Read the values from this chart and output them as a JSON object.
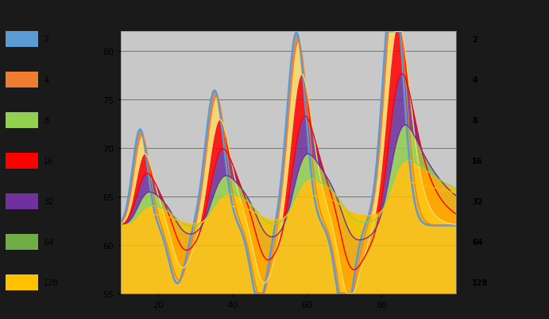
{
  "title": "",
  "ylim": [
    55,
    82
  ],
  "xlim": [
    10,
    100
  ],
  "yticks": [
    55,
    60,
    65,
    70,
    75,
    80
  ],
  "xticks": [
    20,
    40,
    60,
    80
  ],
  "plot_bg_color": "#c8c8c8",
  "left_panel_color": "#1a1a1a",
  "series_colors": [
    "#5b9bd5",
    "#ed7d31",
    "#ffd966",
    "#ff0000",
    "#7030a0",
    "#92d050",
    "#ffc000"
  ],
  "legend_labels": [
    "2",
    "4",
    "8",
    "16",
    "32",
    "64",
    "128"
  ],
  "legend_colors": [
    "#5b9bd5",
    "#ed7d31",
    "#92d050",
    "#ff0000",
    "#7030a0",
    "#70ad47",
    "#ffc000"
  ],
  "n_points": 500
}
